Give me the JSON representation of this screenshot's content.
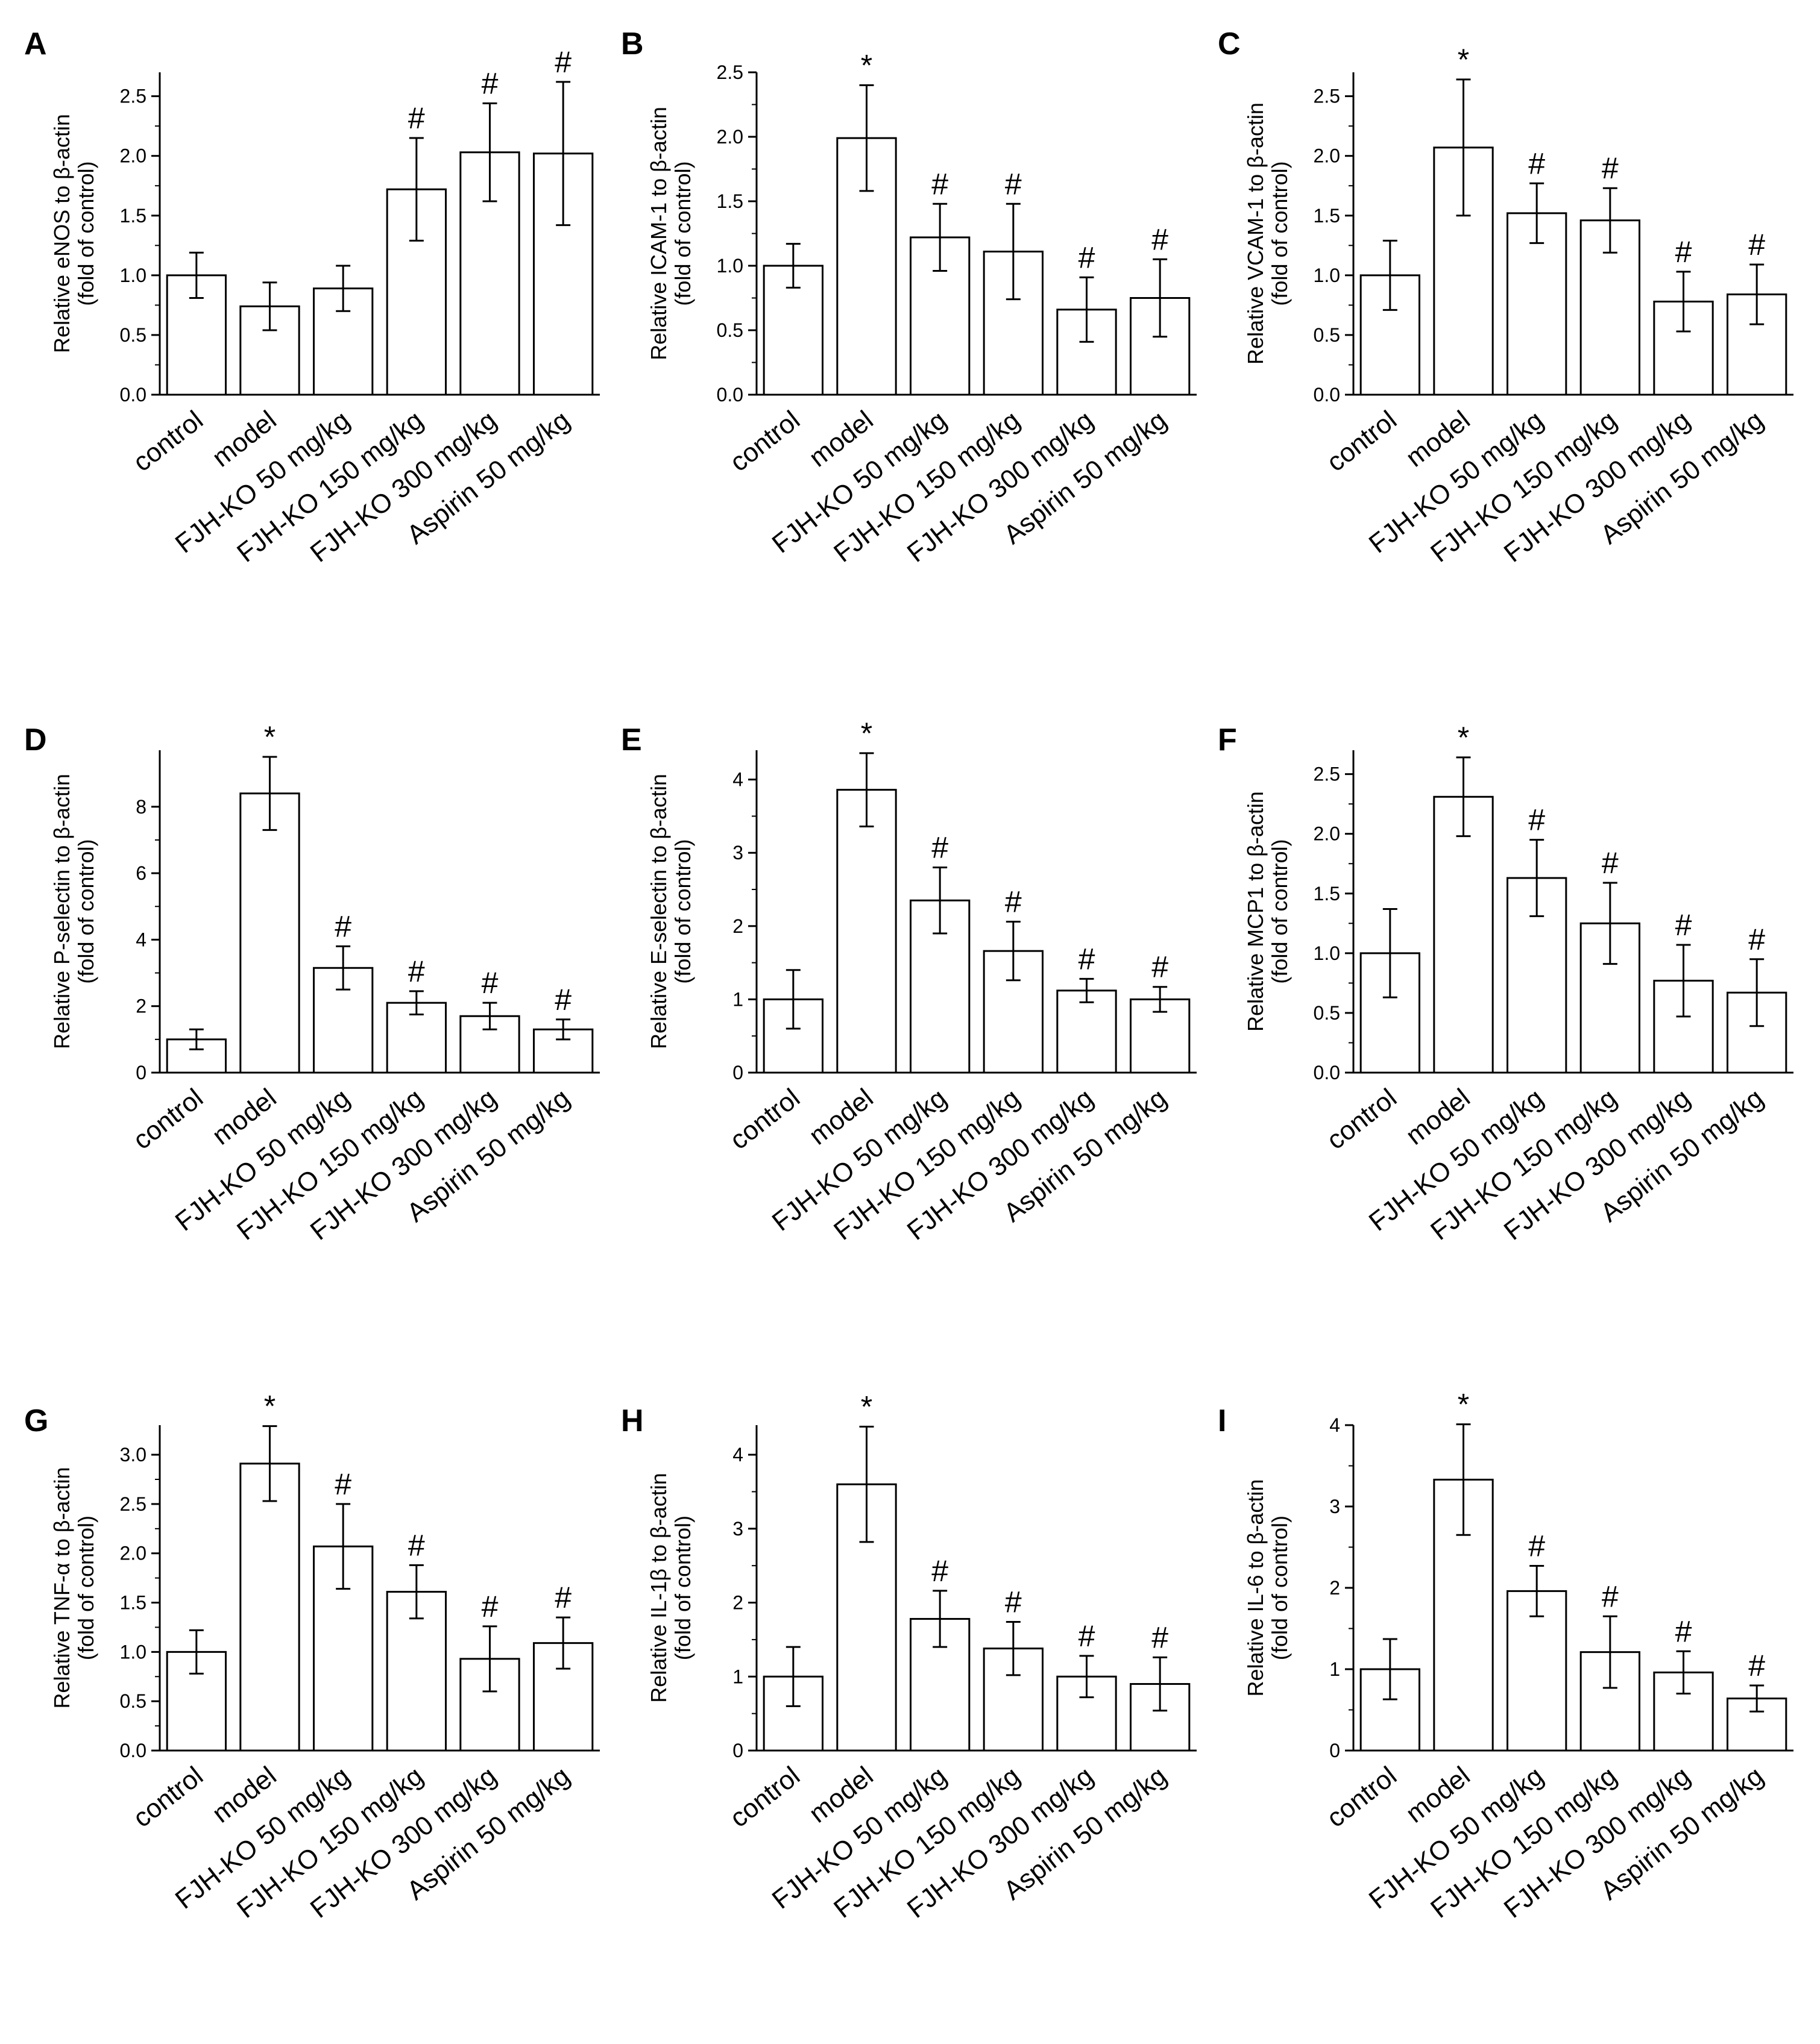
{
  "chart_data": [
    {
      "panel": "A",
      "type": "bar",
      "categories": [
        "control",
        "model",
        "FJH-KO 50 mg/kg",
        "FJH-KO 150 mg/kg",
        "FJH-KO 300 mg/kg",
        "Aspirin 50 mg/kg"
      ],
      "values": [
        1.0,
        0.74,
        0.89,
        1.72,
        2.03,
        2.02
      ],
      "errors": [
        0.19,
        0.2,
        0.19,
        0.43,
        0.41,
        0.6
      ],
      "markers": [
        "",
        "",
        "",
        "#",
        "#",
        "#"
      ],
      "ylabel_line1": "Relative eNOS to β-actin",
      "ylabel_line2": "(fold of control)",
      "ylim": [
        0,
        2.7
      ],
      "yticks": [
        0.0,
        0.5,
        1.0,
        1.5,
        2.0,
        2.5
      ],
      "ytick_labels": [
        "0.0",
        "0.5",
        "1.0",
        "1.5",
        "2.0",
        "2.5"
      ]
    },
    {
      "panel": "B",
      "type": "bar",
      "categories": [
        "control",
        "model",
        "FJH-KO 50 mg/kg",
        "FJH-KO 150 mg/kg",
        "FJH-KO 300 mg/kg",
        "Aspirin 50 mg/kg"
      ],
      "values": [
        1.0,
        1.99,
        1.22,
        1.11,
        0.66,
        0.75
      ],
      "errors": [
        0.17,
        0.41,
        0.26,
        0.37,
        0.25,
        0.3
      ],
      "markers": [
        "",
        "*",
        "#",
        "#",
        "#",
        "#"
      ],
      "ylabel_line1": "Relative ICAM-1 to β-actin",
      "ylabel_line2": "(fold of control)",
      "ylim": [
        0,
        2.5
      ],
      "yticks": [
        0.0,
        0.5,
        1.0,
        1.5,
        2.0,
        2.5
      ],
      "ytick_labels": [
        "0.0",
        "0.5",
        "1.0",
        "1.5",
        "2.0",
        "2.5"
      ]
    },
    {
      "panel": "C",
      "type": "bar",
      "categories": [
        "control",
        "model",
        "FJH-KO 50 mg/kg",
        "FJH-KO 150 mg/kg",
        "FJH-KO 300 mg/kg",
        "Aspirin 50 mg/kg"
      ],
      "values": [
        1.0,
        2.07,
        1.52,
        1.46,
        0.78,
        0.84
      ],
      "errors": [
        0.29,
        0.57,
        0.25,
        0.27,
        0.25,
        0.25
      ],
      "markers": [
        "",
        "*",
        "#",
        "#",
        "#",
        "#"
      ],
      "ylabel_line1": "Relative VCAM-1 to β-actin",
      "ylabel_line2": "(fold of control)",
      "ylim": [
        0,
        2.7
      ],
      "yticks": [
        0.0,
        0.5,
        1.0,
        1.5,
        2.0,
        2.5
      ],
      "ytick_labels": [
        "0.0",
        "0.5",
        "1.0",
        "1.5",
        "2.0",
        "2.5"
      ]
    },
    {
      "panel": "D",
      "type": "bar",
      "categories": [
        "control",
        "model",
        "FJH-KO 50 mg/kg",
        "FJH-KO 150 mg/kg",
        "FJH-KO 300 mg/kg",
        "Aspirin 50 mg/kg"
      ],
      "values": [
        1.0,
        8.4,
        3.15,
        2.1,
        1.7,
        1.3
      ],
      "errors": [
        0.3,
        1.1,
        0.65,
        0.35,
        0.4,
        0.3
      ],
      "markers": [
        "",
        "*",
        "#",
        "#",
        "#",
        "#"
      ],
      "ylabel_line1": "Relative P-selectin to β-actin",
      "ylabel_line2": "(fold of control)",
      "ylim": [
        0,
        9.7
      ],
      "yticks": [
        0,
        2,
        4,
        6,
        8
      ],
      "ytick_labels": [
        "0",
        "2",
        "4",
        "6",
        "8"
      ]
    },
    {
      "panel": "E",
      "type": "bar",
      "categories": [
        "control",
        "model",
        "FJH-KO 50 mg/kg",
        "FJH-KO 150 mg/kg",
        "FJH-KO 300 mg/kg",
        "Aspirin 50 mg/kg"
      ],
      "values": [
        1.0,
        3.86,
        2.35,
        1.66,
        1.12,
        1.0
      ],
      "errors": [
        0.4,
        0.5,
        0.45,
        0.4,
        0.16,
        0.17
      ],
      "markers": [
        "",
        "*",
        "#",
        "#",
        "#",
        "#"
      ],
      "ylabel_line1": "Relative E-selectin to β-actin",
      "ylabel_line2": "(fold of control)",
      "ylim": [
        0,
        4.4
      ],
      "yticks": [
        0,
        1,
        2,
        3,
        4
      ],
      "ytick_labels": [
        "0",
        "1",
        "2",
        "3",
        "4"
      ]
    },
    {
      "panel": "F",
      "type": "bar",
      "categories": [
        "control",
        "model",
        "FJH-KO 50 mg/kg",
        "FJH-KO 150 mg/kg",
        "FJH-KO 300 mg/kg",
        "Aspirin 50 mg/kg"
      ],
      "values": [
        1.0,
        2.31,
        1.63,
        1.25,
        0.77,
        0.67
      ],
      "errors": [
        0.37,
        0.33,
        0.32,
        0.34,
        0.3,
        0.28
      ],
      "markers": [
        "",
        "*",
        "#",
        "#",
        "#",
        "#"
      ],
      "ylabel_line1": "Relative MCP1 to β-actin",
      "ylabel_line2": "(fold of control)",
      "ylim": [
        0,
        2.7
      ],
      "yticks": [
        0.0,
        0.5,
        1.0,
        1.5,
        2.0,
        2.5
      ],
      "ytick_labels": [
        "0.0",
        "0.5",
        "1.0",
        "1.5",
        "2.0",
        "2.5"
      ]
    },
    {
      "panel": "G",
      "type": "bar",
      "categories": [
        "control",
        "model",
        "FJH-KO 50 mg/kg",
        "FJH-KO 150 mg/kg",
        "FJH-KO 300 mg/kg",
        "Aspirin 50 mg/kg"
      ],
      "values": [
        1.0,
        2.91,
        2.07,
        1.61,
        0.93,
        1.09
      ],
      "errors": [
        0.22,
        0.38,
        0.43,
        0.27,
        0.33,
        0.26
      ],
      "markers": [
        "",
        "*",
        "#",
        "#",
        "#",
        "#"
      ],
      "ylabel_line1": "Relative TNF-α to β-actin",
      "ylabel_line2": "(fold of control)",
      "ylim": [
        0,
        3.3
      ],
      "yticks": [
        0.0,
        0.5,
        1.0,
        1.5,
        2.0,
        2.5,
        3.0
      ],
      "ytick_labels": [
        "0.0",
        "0.5",
        "1.0",
        "1.5",
        "2.0",
        "2.5",
        "3.0"
      ]
    },
    {
      "panel": "H",
      "type": "bar",
      "categories": [
        "control",
        "model",
        "FJH-KO 50 mg/kg",
        "FJH-KO 150 mg/kg",
        "FJH-KO 300 mg/kg",
        "Aspirin 50 mg/kg"
      ],
      "values": [
        1.0,
        3.6,
        1.78,
        1.38,
        1.0,
        0.9
      ],
      "errors": [
        0.4,
        0.78,
        0.38,
        0.36,
        0.28,
        0.36
      ],
      "markers": [
        "",
        "*",
        "#",
        "#",
        "#",
        "#"
      ],
      "ylabel_line1": "Relative IL-1β to β-actin",
      "ylabel_line2": "(fold of control)",
      "ylim": [
        0,
        4.4
      ],
      "yticks": [
        0,
        1,
        2,
        3,
        4
      ],
      "ytick_labels": [
        "0",
        "1",
        "2",
        "3",
        "4"
      ]
    },
    {
      "panel": "I",
      "type": "bar",
      "categories": [
        "control",
        "model",
        "FJH-KO 50 mg/kg",
        "FJH-KO 150 mg/kg",
        "FJH-KO 300 mg/kg",
        "Aspirin 50 mg/kg"
      ],
      "values": [
        1.0,
        3.33,
        1.96,
        1.21,
        0.96,
        0.64
      ],
      "errors": [
        0.37,
        0.68,
        0.31,
        0.44,
        0.26,
        0.16
      ],
      "markers": [
        "",
        "*",
        "#",
        "#",
        "#",
        "#"
      ],
      "ylabel_line1": "Relative IL-6 to β-actin",
      "ylabel_line2": "(fold of control)",
      "ylim": [
        0,
        4.0
      ],
      "yticks": [
        0,
        1,
        2,
        3,
        4
      ],
      "ytick_labels": [
        "0",
        "1",
        "2",
        "3",
        "4"
      ]
    }
  ]
}
